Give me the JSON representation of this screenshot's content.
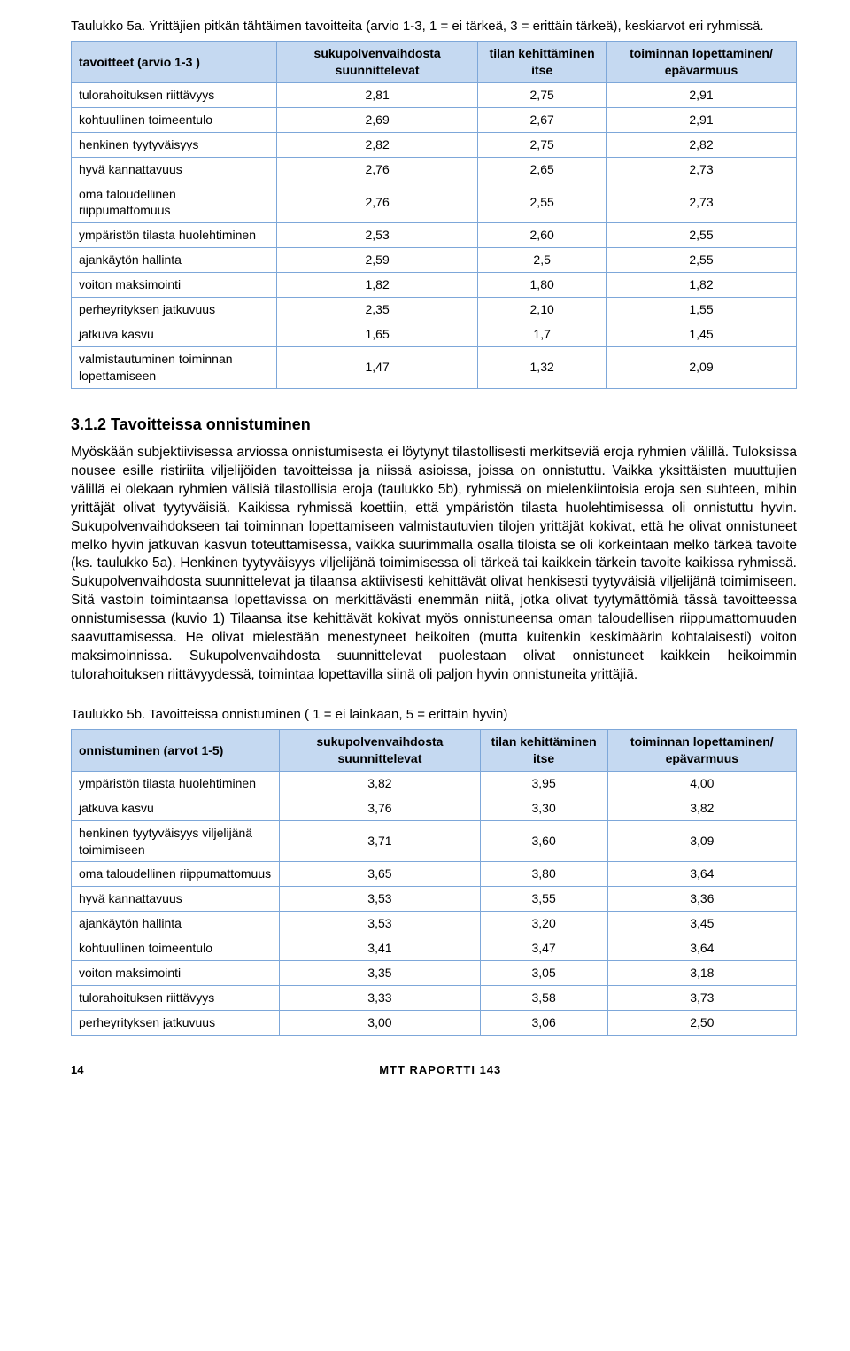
{
  "table5a": {
    "caption": "Taulukko 5a. Yrittäjien pitkän tähtäimen tavoitteita (arvio 1-3, 1 = ei tärkeä, 3 = erittäin tärkeä), keskiarvot eri ryhmissä.",
    "headers": {
      "c0": "tavoitteet (arvio 1-3 )",
      "c1": "sukupolvenvaihdosta suunnittelevat",
      "c2": "tilan kehittäminen itse",
      "c3": "toiminnan lopettaminen/ epävarmuus"
    },
    "rows": [
      {
        "label": "tulorahoituksen riittävyys",
        "v1": "2,81",
        "v2": "2,75",
        "v3": "2,91"
      },
      {
        "label": "kohtuullinen toimeentulo",
        "v1": "2,69",
        "v2": "2,67",
        "v3": "2,91"
      },
      {
        "label": "henkinen tyytyväisyys",
        "v1": "2,82",
        "v2": "2,75",
        "v3": "2,82"
      },
      {
        "label": "hyvä kannattavuus",
        "v1": "2,76",
        "v2": "2,65",
        "v3": "2,73"
      },
      {
        "label": "oma taloudellinen riippumattomuus",
        "v1": "2,76",
        "v2": "2,55",
        "v3": "2,73"
      },
      {
        "label": "ympäristön tilasta huolehtiminen",
        "v1": "2,53",
        "v2": "2,60",
        "v3": "2,55"
      },
      {
        "label": "ajankäytön hallinta",
        "v1": "2,59",
        "v2": "2,5",
        "v3": "2,55"
      },
      {
        "label": "voiton maksimointi",
        "v1": "1,82",
        "v2": "1,80",
        "v3": "1,82"
      },
      {
        "label": "perheyrityksen jatkuvuus",
        "v1": "2,35",
        "v2": "2,10",
        "v3": "1,55"
      },
      {
        "label": "jatkuva kasvu",
        "v1": "1,65",
        "v2": "1,7",
        "v3": "1,45"
      },
      {
        "label": "valmistautuminen toiminnan lopettamiseen",
        "v1": "1,47",
        "v2": "1,32",
        "v3": "2,09"
      }
    ]
  },
  "section": {
    "heading": "3.1.2 Tavoitteissa onnistuminen",
    "body": "Myöskään subjektiivisessa arviossa onnistumisesta ei löytynyt tilastollisesti merkitseviä eroja ryhmien välillä. Tuloksissa nousee esille ristiriita viljelijöiden tavoitteissa ja niissä asioissa, joissa on onnistuttu. Vaikka yksittäisten muuttujien välillä ei olekaan ryhmien välisiä tilastollisia eroja (taulukko 5b), ryhmissä on mielenkiintoisia eroja sen suhteen, mihin yrittäjät olivat tyytyväisiä. Kaikissa ryhmissä koettiin, että ympäristön tilasta huolehtimisessa oli onnistuttu hyvin. Sukupolvenvaihdokseen tai toiminnan lopettamiseen valmistautuvien tilojen yrittäjät kokivat, että he olivat onnistuneet melko hyvin jatkuvan kasvun toteuttamisessa, vaikka suurimmalla osalla tiloista se oli korkeintaan melko tärkeä tavoite (ks. taulukko 5a). Henkinen tyytyväisyys viljelijänä toimimisessa oli tärkeä tai kaikkein tärkein tavoite kaikissa ryhmissä. Sukupolvenvaihdosta suunnittelevat ja tilaansa aktiivisesti kehittävät olivat henkisesti tyytyväisiä viljelijänä toimimiseen. Sitä vastoin toimintaansa lopettavissa on merkittävästi enemmän niitä, jotka olivat tyytymättömiä tässä tavoitteessa onnistumisessa (kuvio 1) Tilaansa itse kehittävät kokivat myös onnistuneensa oman taloudellisen riippumattomuuden saavuttamisessa. He olivat mielestään menestyneet heikoiten (mutta kuitenkin keskimäärin kohtalaisesti) voiton maksimoinnissa. Sukupolvenvaihdosta suunnittelevat puolestaan olivat onnistuneet kaikkein heikoimmin tulorahoituksen riittävyydessä, toimintaa lopettavilla siinä oli paljon hyvin onnistuneita yrittäjiä."
  },
  "table5b": {
    "caption": "Taulukko 5b. Tavoitteissa onnistuminen ( 1 = ei lainkaan, 5 = erittäin hyvin)",
    "headers": {
      "c0": "onnistuminen (arvot 1-5)",
      "c1": "sukupolvenvaihdosta suunnittelevat",
      "c2": "tilan kehittäminen itse",
      "c3": "toiminnan lopettaminen/ epävarmuus"
    },
    "rows": [
      {
        "label": "ympäristön tilasta huolehtiminen",
        "v1": "3,82",
        "v2": "3,95",
        "v3": "4,00"
      },
      {
        "label": "jatkuva kasvu",
        "v1": "3,76",
        "v2": "3,30",
        "v3": "3,82"
      },
      {
        "label": "henkinen tyytyväisyys viljelijänä toimimiseen",
        "v1": "3,71",
        "v2": "3,60",
        "v3": "3,09"
      },
      {
        "label": "oma taloudellinen riippumattomuus",
        "v1": "3,65",
        "v2": "3,80",
        "v3": "3,64"
      },
      {
        "label": "hyvä kannattavuus",
        "v1": "3,53",
        "v2": "3,55",
        "v3": "3,36"
      },
      {
        "label": "ajankäytön hallinta",
        "v1": "3,53",
        "v2": "3,20",
        "v3": "3,45"
      },
      {
        "label": "kohtuullinen toimeentulo",
        "v1": "3,41",
        "v2": "3,47",
        "v3": "3,64"
      },
      {
        "label": "voiton maksimointi",
        "v1": "3,35",
        "v2": "3,05",
        "v3": "3,18"
      },
      {
        "label": "tulorahoituksen riittävyys",
        "v1": "3,33",
        "v2": "3,58",
        "v3": "3,73"
      },
      {
        "label": "perheyrityksen jatkuvuus",
        "v1": "3,00",
        "v2": "3,06",
        "v3": "2,50"
      }
    ]
  },
  "footer": {
    "page": "14",
    "label": "MTT RAPORTTI 143"
  },
  "style": {
    "header_bg": "#c5d9f1",
    "border_color": "#7da7d9",
    "text_color": "#000000",
    "page_bg": "#ffffff"
  }
}
